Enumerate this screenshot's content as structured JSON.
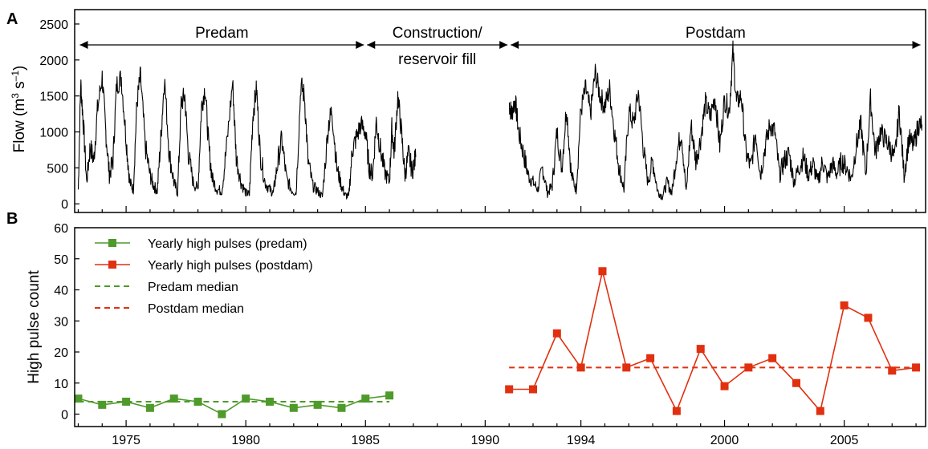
{
  "chart_data": [
    {
      "type": "line",
      "panel_label": "A",
      "ylabel_main": "Flow (m",
      "ylabel_sup1": "3",
      "ylabel_mid": " s",
      "ylabel_sup2": "–1",
      "ylabel_end": ")",
      "xlim": [
        1972.85,
        2008.4
      ],
      "ylim": [
        -120,
        2700
      ],
      "yticks": [
        0,
        500,
        1000,
        1500,
        2000,
        2500
      ],
      "yticklabels": [
        "0",
        "500",
        "1000",
        "1500",
        "2000",
        "2500"
      ],
      "x_major": [
        1975,
        1980,
        1985,
        1990,
        1994,
        2000,
        2005
      ],
      "minor_step": 1,
      "line_color": "#000000",
      "periods": [
        {
          "label": "Predam",
          "start": 1973.0,
          "end": 1985.0
        },
        {
          "label_line1": "Construction/",
          "label_line2": "reservoir fill",
          "start": 1985.0,
          "end": 1991.0
        },
        {
          "label": "Postdam",
          "start": 1991.0,
          "end": 2008.25
        }
      ],
      "series": [
        {
          "x": [
            1973.0,
            1973.1,
            1973.2,
            1973.35,
            1973.5,
            1973.65,
            1973.8,
            1974.0,
            1974.15,
            1974.3,
            1974.45,
            1974.6,
            1974.8,
            1975.0,
            1975.15,
            1975.3,
            1975.45,
            1975.6,
            1975.8,
            1976.0,
            1976.15,
            1976.3,
            1976.45,
            1976.6,
            1976.8,
            1977.0,
            1977.15,
            1977.3,
            1977.45,
            1977.6,
            1977.8,
            1978.0,
            1978.15,
            1978.3,
            1978.45,
            1978.6,
            1978.8,
            1979.0,
            1979.2,
            1979.45,
            1979.6,
            1979.8,
            1980.0,
            1980.15,
            1980.3,
            1980.45,
            1980.6,
            1980.8,
            1981.0,
            1981.15,
            1981.3,
            1981.5,
            1981.7,
            1981.9,
            1982.1,
            1982.3,
            1982.45,
            1982.6,
            1982.8,
            1983.0,
            1983.2,
            1983.45,
            1983.6,
            1983.8,
            1984.0,
            1984.15,
            1984.3,
            1984.45,
            1984.6,
            1984.8,
            1985.0,
            1985.15,
            1985.3,
            1985.45,
            1985.6,
            1985.8,
            1986.0,
            1986.1,
            1986.2,
            1986.35,
            1986.5,
            1986.65,
            1986.8,
            1986.95,
            1987.1
          ],
          "y": [
            200,
            1680,
            1200,
            300,
            800,
            600,
            1300,
            1770,
            1000,
            400,
            600,
            1650,
            1760,
            900,
            300,
            200,
            1400,
            1780,
            800,
            400,
            250,
            180,
            900,
            1760,
            700,
            300,
            150,
            1400,
            1500,
            700,
            300,
            200,
            1350,
            1620,
            800,
            350,
            200,
            180,
            800,
            1700,
            650,
            300,
            150,
            130,
            1250,
            1600,
            700,
            300,
            200,
            150,
            500,
            900,
            350,
            200,
            150,
            1650,
            1500,
            600,
            250,
            180,
            100,
            1100,
            1300,
            500,
            250,
            120,
            100,
            750,
            900,
            1100,
            1000,
            500,
            400,
            1150,
            800,
            450,
            300,
            1050,
            700,
            1500,
            1000,
            400,
            700,
            450,
            650
          ]
        },
        {
          "x": [
            1991.0,
            1991.1,
            1991.25,
            1991.4,
            1991.6,
            1991.8,
            1992.0,
            1992.2,
            1992.4,
            1992.6,
            1992.8,
            1993.0,
            1993.2,
            1993.4,
            1993.6,
            1993.8,
            1994.0,
            1994.2,
            1994.4,
            1994.6,
            1994.8,
            1995.0,
            1995.2,
            1995.4,
            1995.6,
            1995.8,
            1996.0,
            1996.2,
            1996.4,
            1996.6,
            1996.8,
            1997.0,
            1997.2,
            1997.4,
            1997.6,
            1997.8,
            1998.0,
            1998.2,
            1998.4,
            1998.6,
            1998.8,
            1999.0,
            1999.2,
            1999.4,
            1999.6,
            1999.8,
            2000.0,
            2000.2,
            2000.35,
            2000.5,
            2000.7,
            2000.9,
            2001.1,
            2001.3,
            2001.5,
            2001.7,
            2001.9,
            2002.1,
            2002.3,
            2002.5,
            2002.7,
            2002.9,
            2003.1,
            2003.3,
            2003.5,
            2003.7,
            2003.9,
            2004.1,
            2004.3,
            2004.5,
            2004.7,
            2004.9,
            2005.1,
            2005.3,
            2005.5,
            2005.7,
            2005.9,
            2006.1,
            2006.3,
            2006.5,
            2006.7,
            2006.9,
            2007.1,
            2007.3,
            2007.5,
            2007.7,
            2007.9,
            2008.1,
            2008.25
          ],
          "y": [
            1400,
            1250,
            1450,
            1000,
            700,
            400,
            300,
            200,
            500,
            150,
            250,
            1000,
            500,
            1350,
            400,
            200,
            1300,
            1600,
            1250,
            1820,
            1500,
            1350,
            1600,
            1000,
            500,
            200,
            1300,
            1100,
            1560,
            800,
            300,
            600,
            180,
            100,
            300,
            150,
            700,
            1000,
            150,
            1100,
            600,
            900,
            1400,
            1200,
            1500,
            800,
            1450,
            1300,
            2120,
            1400,
            1500,
            700,
            500,
            1000,
            400,
            800,
            1100,
            1000,
            400,
            600,
            700,
            300,
            500,
            650,
            400,
            550,
            300,
            600,
            350,
            550,
            420,
            600,
            500,
            350,
            800,
            1100,
            400,
            1450,
            700,
            1000,
            900,
            800,
            600,
            1300,
            400,
            900,
            800,
            1100,
            1100
          ]
        }
      ]
    },
    {
      "type": "line",
      "panel_label": "B",
      "ylabel": "High pulse count",
      "xlim": [
        1972.85,
        2008.4
      ],
      "ylim": [
        -4,
        60
      ],
      "yticks": [
        0,
        10,
        20,
        30,
        40,
        50,
        60
      ],
      "yticklabels": [
        "0",
        "10",
        "20",
        "30",
        "40",
        "50",
        "60"
      ],
      "xticks": [
        1975,
        1980,
        1985,
        1990,
        1994,
        2000,
        2005
      ],
      "xticklabels": [
        "1975",
        "1980",
        "1985",
        "1990",
        "1994",
        "2000",
        "2005"
      ],
      "minor_step": 1,
      "series": [
        {
          "name": "Yearly high pulses (predam)",
          "color": "#4e9a2a",
          "x": [
            1973,
            1974,
            1975,
            1976,
            1977,
            1978,
            1979,
            1980,
            1981,
            1982,
            1983,
            1984,
            1985,
            1986
          ],
          "y": [
            5,
            3,
            4,
            2,
            5,
            4,
            0,
            5,
            4,
            2,
            3,
            2,
            5,
            6
          ]
        },
        {
          "name": "Yearly high pulses (postdam)",
          "color": "#e03010",
          "x": [
            1991,
            1992,
            1993,
            1994,
            1994.9,
            1995.9,
            1996.9,
            1998,
            1999,
            2000,
            2001,
            2002,
            2003,
            2004,
            2005,
            2006,
            2007,
            2008
          ],
          "y": [
            8,
            8,
            26,
            15,
            46,
            15,
            18,
            1,
            21,
            9,
            15,
            18,
            10,
            1,
            35,
            31,
            14,
            15
          ]
        }
      ],
      "medians": [
        {
          "name": "Predam median",
          "color": "#4e9a2a",
          "value": 4,
          "x_start": 1973,
          "x_end": 1986
        },
        {
          "name": "Postdam median",
          "color": "#e03010",
          "value": 15,
          "x_start": 1991,
          "x_end": 2008
        }
      ],
      "legend_placement": "top-left"
    }
  ]
}
